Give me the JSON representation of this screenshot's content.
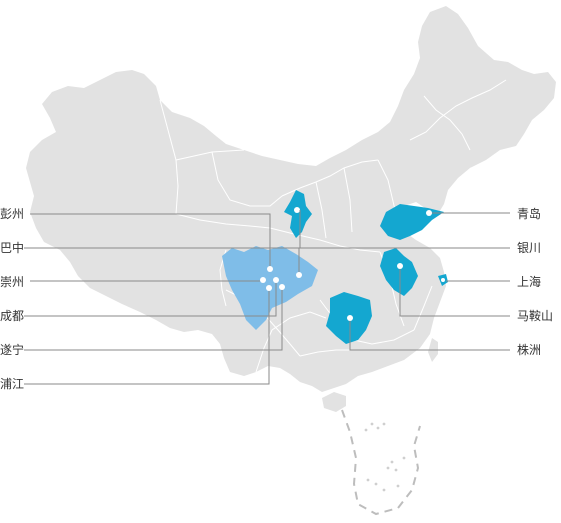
{
  "colors": {
    "land": "#e2e2e2",
    "province_border": "#ffffff",
    "highlight_dark": "#14a7d0",
    "highlight_light": "#7fbde8",
    "leader_line": "#8a8a8a",
    "label_text": "#333333",
    "island_dash": "#bdbdbd"
  },
  "cities_left": [
    {
      "name": "彭州"
    },
    {
      "name": "巴中"
    },
    {
      "name": "崇州"
    },
    {
      "name": "成都"
    },
    {
      "name": "遂宁"
    },
    {
      "name": "浦江"
    }
  ],
  "cities_right": [
    {
      "name": "青岛"
    },
    {
      "name": "银川"
    },
    {
      "name": "上海"
    },
    {
      "name": "马鞍山"
    },
    {
      "name": "株洲"
    }
  ]
}
